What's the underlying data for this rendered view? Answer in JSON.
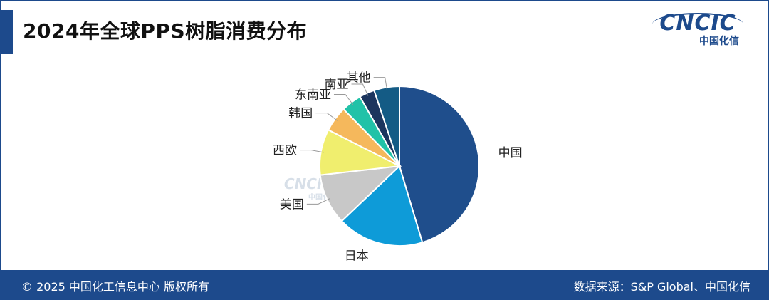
{
  "title": "2024年全球PPS树脂消费分布",
  "logo": {
    "word": "CNCIC",
    "sub": "中国化信"
  },
  "watermark": {
    "word": "CNCIC",
    "sub": "中国化信"
  },
  "footer": {
    "copyright": "© 2025 中国化工信息中心  版权所有",
    "source": "数据来源：S&P Global、中国化信"
  },
  "colors": {
    "brand": "#1d4a8c"
  },
  "chart_data": {
    "type": "pie",
    "categories": [
      "中国",
      "日本",
      "美国",
      "西欧",
      "韩国",
      "东南亚",
      "南亚",
      "其他"
    ],
    "values": [
      44,
      17,
      10,
      9,
      5,
      4,
      3,
      5
    ],
    "colors": [
      "#1f4e8c",
      "#0e9bd8",
      "#c8c8c8",
      "#f0ee6e",
      "#f5b85c",
      "#21c2a8",
      "#1c355e",
      "#145b85"
    ]
  }
}
